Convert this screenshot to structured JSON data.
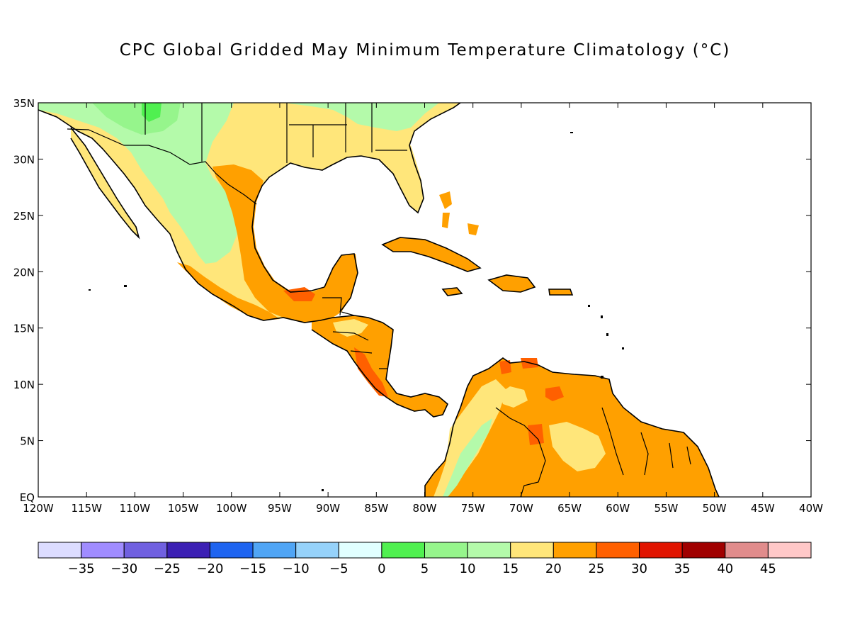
{
  "title": "CPC Global Gridded May Minimum Temperature Climatology (°C)",
  "map": {
    "lon_range": [
      -120,
      -40
    ],
    "lat_range": [
      0,
      35
    ],
    "lon_ticks": [
      "120W",
      "115W",
      "110W",
      "105W",
      "100W",
      "95W",
      "90W",
      "85W",
      "80W",
      "75W",
      "70W",
      "65W",
      "60W",
      "55W",
      "50W",
      "45W",
      "40W"
    ],
    "lat_ticks": [
      "EQ",
      "5N",
      "10N",
      "15N",
      "20N",
      "25N",
      "30N",
      "35N"
    ],
    "ocean_color": "#ffffff"
  },
  "colorbar": {
    "colors": [
      "#dcdcff",
      "#a08cff",
      "#7060e0",
      "#3c20b4",
      "#1e64f0",
      "#50a5f5",
      "#96d2fa",
      "#e1ffff",
      "#50f050",
      "#96f58c",
      "#b4faaa",
      "#ffe67a",
      "#ffa000",
      "#ff6000",
      "#e11400",
      "#a00000",
      "#e18c8c",
      "#ffc8c8"
    ],
    "labels": [
      "-35",
      "-30",
      "-25",
      "-20",
      "-15",
      "-10",
      "-5",
      "0",
      "5",
      "10",
      "15",
      "20",
      "25",
      "30",
      "35",
      "40",
      "45"
    ]
  }
}
